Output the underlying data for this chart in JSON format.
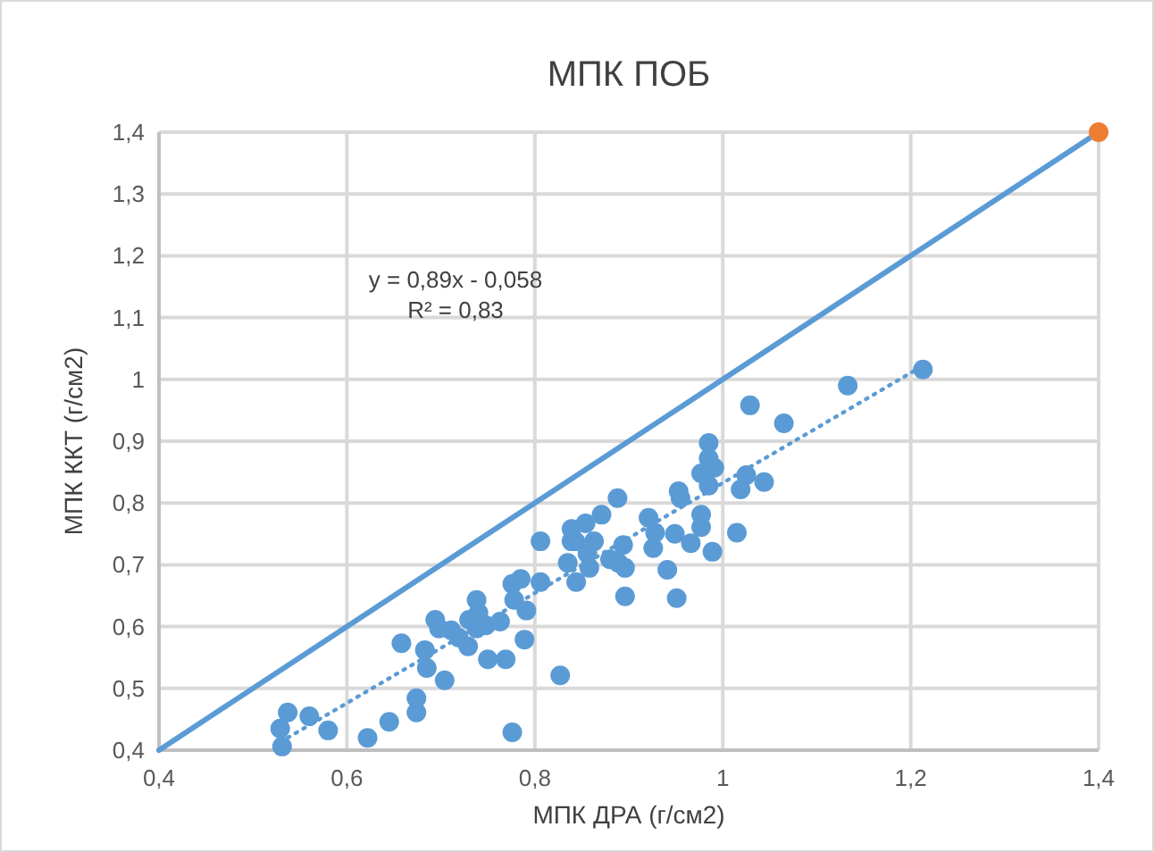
{
  "chart_data": {
    "type": "scatter",
    "title": "МПК ПОБ",
    "xlabel": "МПК ДРА (г/см2)",
    "ylabel": "МПК ККТ (г/см2)",
    "xlim": [
      0.4,
      1.4
    ],
    "ylim": [
      0.4,
      1.4
    ],
    "xticks": [
      {
        "value": 0.4,
        "label": "0,4"
      },
      {
        "value": 0.6,
        "label": "0,6"
      },
      {
        "value": 0.8,
        "label": "0,8"
      },
      {
        "value": 1,
        "label": "1"
      },
      {
        "value": 1.2,
        "label": "1,2"
      },
      {
        "value": 1.4,
        "label": "1,4"
      }
    ],
    "yticks": [
      {
        "value": 0.4,
        "label": "0,4"
      },
      {
        "value": 0.5,
        "label": "0,5"
      },
      {
        "value": 0.6,
        "label": "0,6"
      },
      {
        "value": 0.7,
        "label": "0,7"
      },
      {
        "value": 0.8,
        "label": "0,8"
      },
      {
        "value": 0.9,
        "label": "0,9"
      },
      {
        "value": 1,
        "label": "1"
      },
      {
        "value": 1.1,
        "label": "1,1"
      },
      {
        "value": 1.2,
        "label": "1,2"
      },
      {
        "value": 1.3,
        "label": "1,3"
      },
      {
        "value": 1.4,
        "label": "1,4"
      }
    ],
    "grid": true,
    "annotations": [
      "y = 0,89x - 0,058",
      "R² = 0,83"
    ],
    "series": [
      {
        "type": "line",
        "color": "#5b9bd5",
        "line_style": "solid",
        "marker": "none",
        "x": [
          0.4,
          1.4
        ],
        "values": [
          0.4,
          1.4
        ]
      },
      {
        "type": "line",
        "color": "#5b9bd5",
        "line_style": "dotted",
        "marker": "none",
        "x": [
          0.529,
          1.213
        ],
        "values": [
          0.413,
          1.022
        ]
      },
      {
        "color": "#5b9bd5",
        "marker": "circle",
        "x": [
          0.531,
          0.529,
          0.537,
          0.56,
          0.58,
          0.622,
          0.645,
          0.674,
          0.674,
          0.704,
          0.685,
          0.683,
          0.658,
          0.694,
          0.698,
          0.711,
          0.719,
          0.729,
          0.73,
          0.738,
          0.74,
          0.748,
          0.738,
          0.763,
          0.75,
          0.769,
          0.789,
          0.778,
          0.776,
          0.785,
          0.791,
          0.806,
          0.806,
          0.827,
          0.776,
          0.843,
          0.835,
          0.844,
          0.839,
          0.839,
          0.854,
          0.856,
          0.858,
          0.863,
          0.871,
          0.888,
          0.88,
          0.889,
          0.896,
          0.894,
          0.896,
          0.921,
          0.926,
          0.928,
          0.941,
          0.951,
          0.949,
          0.953,
          0.955,
          0.966,
          0.977,
          0.977,
          0.977,
          0.985,
          0.985,
          0.991,
          0.985,
          0.989,
          1.015,
          1.019,
          1.025,
          1.044,
          1.065,
          1.029,
          1.133,
          1.213
        ],
        "values": [
          0.406,
          0.435,
          0.461,
          0.455,
          0.432,
          0.42,
          0.446,
          0.461,
          0.484,
          0.513,
          0.533,
          0.562,
          0.573,
          0.611,
          0.597,
          0.594,
          0.582,
          0.568,
          0.611,
          0.643,
          0.622,
          0.602,
          0.597,
          0.608,
          0.547,
          0.547,
          0.579,
          0.643,
          0.669,
          0.677,
          0.626,
          0.672,
          0.738,
          0.521,
          0.429,
          0.738,
          0.703,
          0.672,
          0.758,
          0.738,
          0.767,
          0.718,
          0.695,
          0.738,
          0.781,
          0.808,
          0.709,
          0.703,
          0.695,
          0.732,
          0.649,
          0.776,
          0.727,
          0.752,
          0.692,
          0.646,
          0.75,
          0.819,
          0.808,
          0.735,
          0.761,
          0.781,
          0.848,
          0.897,
          0.872,
          0.857,
          0.828,
          0.721,
          0.752,
          0.822,
          0.845,
          0.834,
          0.929,
          0.958,
          0.99,
          1.016
        ]
      },
      {
        "color": "#ed7d31",
        "marker": "circle",
        "x": [
          1.4
        ],
        "values": [
          1.4
        ]
      }
    ]
  }
}
